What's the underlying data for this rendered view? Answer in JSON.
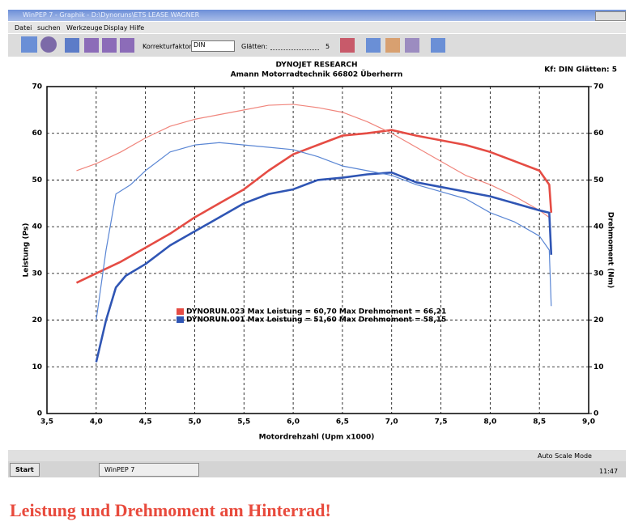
{
  "window": {
    "title": "WinPEP 7 - Graphik - D:\\Dynoruns\\ETS LEASE WAGNER",
    "menu": [
      "Datei",
      "suchen",
      "Werkzeuge",
      "Display",
      "Hilfe"
    ],
    "toolbar": {
      "korrektur_label": "Korrekturfaktor:",
      "korrektur_value": "DIN",
      "glaetten_label": "Glätten:",
      "glaetten_value": "5"
    },
    "status": "Auto Scale Mode"
  },
  "chart_data": {
    "type": "line",
    "title": "DYNOJET RESEARCH",
    "subtitle": "Amann Motorradtechnik 66802 Überherrn",
    "annotation": "Kf: DIN  Glätten: 5",
    "xlabel": "Motordrehzahl (Upm x1000)",
    "ylabel": "Leistung (Ps)",
    "y2label": "Drehmoment (Nm)",
    "xlim": [
      3.5,
      9.0
    ],
    "ylim": [
      0,
      70
    ],
    "y2lim": [
      0,
      70
    ],
    "xticks": [
      {
        "value": 3.5,
        "label": "3,5"
      },
      {
        "value": 4.0,
        "label": "4,0"
      },
      {
        "value": 4.5,
        "label": "4,5"
      },
      {
        "value": 5.0,
        "label": "5,0"
      },
      {
        "value": 5.5,
        "label": "5,5"
      },
      {
        "value": 6.0,
        "label": "6,0"
      },
      {
        "value": 6.5,
        "label": "6,5"
      },
      {
        "value": 7.0,
        "label": "7,0"
      },
      {
        "value": 7.5,
        "label": "7,5"
      },
      {
        "value": 8.0,
        "label": "8,0"
      },
      {
        "value": 8.5,
        "label": "8,5"
      },
      {
        "value": 9.0,
        "label": "9,0"
      }
    ],
    "yticks": [
      0,
      10,
      20,
      30,
      40,
      50,
      60,
      70
    ],
    "y2ticks": [
      0,
      10,
      20,
      30,
      40,
      50,
      60,
      70
    ],
    "grid": true,
    "series": [
      {
        "name": "DYNORUN.023 Max Leistung = 60,70 Max Drehmoment = 66,21",
        "color": "#e54c44",
        "x": [
          3.8,
          4.0,
          4.25,
          4.5,
          4.75,
          5.0,
          5.25,
          5.5,
          5.75,
          6.0,
          6.25,
          6.5,
          6.75,
          7.0,
          7.25,
          7.5,
          7.75,
          8.0,
          8.25,
          8.5,
          8.6,
          8.62
        ],
        "values": [
          28,
          30,
          32.5,
          35.5,
          38.5,
          42,
          45,
          48,
          52,
          55.5,
          57.5,
          59.5,
          60,
          60.7,
          59.5,
          58.5,
          57.5,
          56,
          54,
          52,
          49,
          43
        ]
      },
      {
        "color": "#f0857c",
        "axis": "y2",
        "x": [
          3.8,
          4.0,
          4.25,
          4.5,
          4.75,
          5.0,
          5.25,
          5.5,
          5.75,
          6.0,
          6.25,
          6.5,
          6.75,
          7.0,
          7.25,
          7.5,
          7.75,
          8.0,
          8.25,
          8.5,
          8.6,
          8.62
        ],
        "values": [
          52,
          53.5,
          56,
          59,
          61.5,
          63,
          64,
          65,
          66,
          66.2,
          65.5,
          64.5,
          62.5,
          60,
          57,
          54,
          51,
          49,
          46.5,
          43.5,
          42,
          36
        ]
      },
      {
        "name": "DYNORUN.001 Max Leistung = 51,60 Max Drehmoment = 58,15",
        "color": "#2f55b4",
        "x": [
          4.0,
          4.1,
          4.2,
          4.3,
          4.5,
          4.75,
          5.0,
          5.25,
          5.5,
          5.75,
          6.0,
          6.25,
          6.5,
          6.75,
          7.0,
          7.25,
          7.5,
          7.75,
          8.0,
          8.25,
          8.5,
          8.6,
          8.62
        ],
        "values": [
          11,
          20,
          27,
          29.5,
          32,
          36,
          39,
          42,
          45,
          47,
          48,
          50,
          50.5,
          51.2,
          51.6,
          49.5,
          48.5,
          47.5,
          46.5,
          45,
          43.5,
          43,
          34
        ]
      },
      {
        "color": "#5a86d4",
        "axis": "y2",
        "x": [
          4.0,
          4.1,
          4.2,
          4.35,
          4.5,
          4.75,
          5.0,
          5.25,
          5.5,
          5.75,
          6.0,
          6.25,
          6.5,
          6.75,
          7.0,
          7.25,
          7.5,
          7.75,
          8.0,
          8.25,
          8.5,
          8.6,
          8.62
        ],
        "values": [
          20,
          35,
          47,
          49,
          52,
          56,
          57.5,
          58,
          57.5,
          57,
          56.5,
          55,
          53,
          52,
          51,
          49,
          47.5,
          46,
          43,
          41,
          38,
          35,
          23
        ]
      }
    ]
  },
  "taskbar": {
    "start": "Start",
    "task": "WinPEP 7",
    "clock": "11:47"
  },
  "caption": "Leistung und Drehmoment am Hinterrad!"
}
